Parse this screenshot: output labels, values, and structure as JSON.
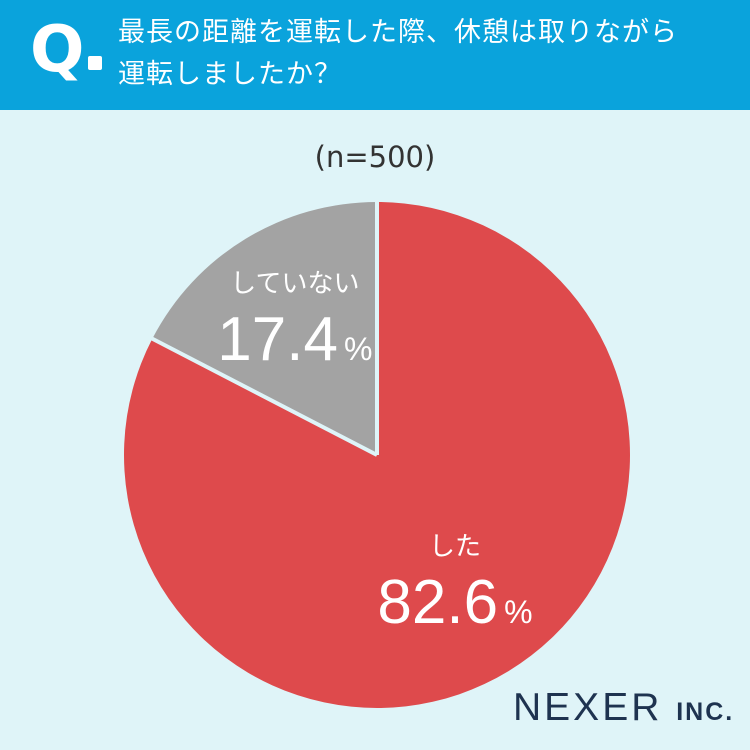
{
  "header": {
    "q_mark": "Q",
    "question_line1": "最長の距離を運転した際、休憩は取りながら",
    "question_line2": "運転しましたか？",
    "background_color": "#0aa3dc"
  },
  "n_label": "(n=500)",
  "chart_data": {
    "type": "pie",
    "title": "",
    "start_angle_deg": 0,
    "direction": "clockwise",
    "slices": [
      {
        "label": "した",
        "value": 82.6,
        "value_text": "82.6",
        "unit": "%",
        "color": "#de4a4c"
      },
      {
        "label": "していない",
        "value": 17.4,
        "value_text": "17.4",
        "unit": "%",
        "color": "#a3a3a3"
      }
    ],
    "separator_color": "#dff4f8"
  },
  "logo": {
    "main": "NEXER",
    "suffix": "INC."
  }
}
